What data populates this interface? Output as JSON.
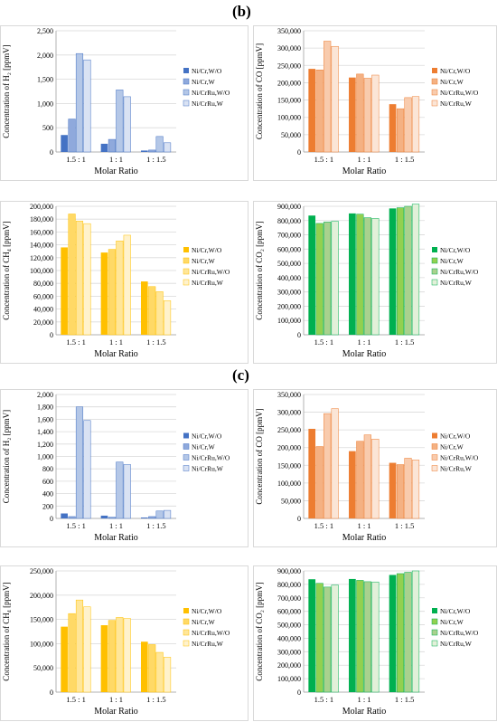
{
  "labels": {
    "b": "(b)",
    "c": "(c)"
  },
  "chart_data": [
    {
      "type": "bar",
      "ylabel": "Concentration of H₂ [ppmV]",
      "xlabel": "Molar Ratio",
      "categories": [
        "1.5 : 1",
        "1 : 1",
        "1 : 1.5"
      ],
      "ylim": [
        0,
        2500
      ],
      "step": 500,
      "series": [
        {
          "name": "Ni/Cr,W/O",
          "values": [
            350,
            170,
            30
          ]
        },
        {
          "name": "Ni/Cr,W",
          "values": [
            680,
            260,
            40
          ]
        },
        {
          "name": "Ni/CrRu,W/O",
          "values": [
            2030,
            1280,
            320
          ]
        },
        {
          "name": "Ni/CrRu,W",
          "values": [
            1900,
            1140,
            190
          ]
        }
      ],
      "palette": [
        "#4472c4",
        "#8fa9dc",
        "#b4c7e7",
        "#d9e2f3"
      ]
    },
    {
      "type": "bar",
      "ylabel": "Concentration of CO [ppmV]",
      "xlabel": "Molar Ratio",
      "categories": [
        "1.5 : 1",
        "1 : 1",
        "1 : 1.5"
      ],
      "ylim": [
        0,
        350000
      ],
      "step": 50000,
      "series": [
        {
          "name": "Ni/Cr,W/O",
          "values": [
            240000,
            215000,
            138000
          ]
        },
        {
          "name": "Ni/Cr,W",
          "values": [
            237000,
            225000,
            125000
          ]
        },
        {
          "name": "Ni/CrRu,W/O",
          "values": [
            320000,
            213000,
            157000
          ]
        },
        {
          "name": "Ni/CrRu,W",
          "values": [
            305000,
            222000,
            160000
          ]
        }
      ],
      "palette": [
        "#ed7d31",
        "#f4b183",
        "#f8cbad",
        "#fbe5d6"
      ]
    },
    {
      "type": "bar",
      "ylabel": "Concentration of CH₄ [ppmV]",
      "xlabel": "Molar Ratio",
      "categories": [
        "1.5 : 1",
        "1 : 1",
        "1 : 1.5"
      ],
      "ylim": [
        0,
        200000
      ],
      "step": 20000,
      "series": [
        {
          "name": "Ni/Cr,W/O",
          "values": [
            136000,
            128000,
            83000
          ]
        },
        {
          "name": "Ni/Cr,W",
          "values": [
            188000,
            133000,
            75000
          ]
        },
        {
          "name": "Ni/CrRu,W/O",
          "values": [
            177000,
            146000,
            67000
          ]
        },
        {
          "name": "Ni/CrRu,W",
          "values": [
            173000,
            155000,
            53000
          ]
        }
      ],
      "palette": [
        "#ffc000",
        "#ffd966",
        "#ffe699",
        "#fff2cc"
      ]
    },
    {
      "type": "bar",
      "ylabel": "Concentration of  CO₂ [ppmV]",
      "xlabel": "Molar Ratio",
      "categories": [
        "1.5 : 1",
        "1 : 1",
        "1 : 1.5"
      ],
      "ylim": [
        0,
        900000
      ],
      "step": 100000,
      "series": [
        {
          "name": "Ni/Cr,W/O",
          "values": [
            835000,
            850000,
            885000
          ]
        },
        {
          "name": "Ni/Cr,W",
          "values": [
            780000,
            845000,
            890000
          ]
        },
        {
          "name": "Ni/CrRu,W/O",
          "values": [
            790000,
            820000,
            900000
          ]
        },
        {
          "name": "Ni/CrRu,W",
          "values": [
            795000,
            815000,
            915000
          ]
        }
      ],
      "palette": [
        "#00b050",
        "#92d050",
        "#a9d18e",
        "#e2f0d9"
      ]
    },
    {
      "type": "bar",
      "ylabel": "Concentration of H₂ [ppmV]",
      "xlabel": "Molar Ratio",
      "categories": [
        "1.5 : 1",
        "1 : 1",
        "1 : 1.5"
      ],
      "ylim": [
        0,
        2000
      ],
      "step": 200,
      "series": [
        {
          "name": "Ni/Cr,W/O",
          "values": [
            80,
            45,
            15
          ]
        },
        {
          "name": "Ni/Cr,W",
          "values": [
            30,
            20,
            30
          ]
        },
        {
          "name": "Ni/CrRu,W/O",
          "values": [
            1800,
            910,
            120
          ]
        },
        {
          "name": "Ni/CrRu,W",
          "values": [
            1580,
            870,
            130
          ]
        }
      ],
      "palette": [
        "#4472c4",
        "#8fa9dc",
        "#b4c7e7",
        "#d9e2f3"
      ]
    },
    {
      "type": "bar",
      "ylabel": "Concentration of CO [ppmV]",
      "xlabel": "Molar Ratio",
      "categories": [
        "1.5 : 1",
        "1 : 1",
        "1 : 1.5"
      ],
      "ylim": [
        0,
        350000
      ],
      "step": 50000,
      "series": [
        {
          "name": "Ni/Cr,W/O",
          "values": [
            253000,
            190000,
            157000
          ]
        },
        {
          "name": "Ni/Cr,W",
          "values": [
            203000,
            218000,
            152000
          ]
        },
        {
          "name": "Ni/CrRu,W/O",
          "values": [
            296000,
            236000,
            170000
          ]
        },
        {
          "name": "Ni/CrRu,W",
          "values": [
            310000,
            224000,
            165000
          ]
        }
      ],
      "palette": [
        "#ed7d31",
        "#f4b183",
        "#f8cbad",
        "#fbe5d6"
      ]
    },
    {
      "type": "bar",
      "ylabel": "Concentration of CH₄ [ppmV]",
      "xlabel": "Molar Ratio",
      "categories": [
        "1.5 : 1",
        "1 : 1",
        "1 : 1.5"
      ],
      "ylim": [
        0,
        250000
      ],
      "step": 50000,
      "series": [
        {
          "name": "Ni/Cr,W/O",
          "values": [
            135000,
            138000,
            104000
          ]
        },
        {
          "name": "Ni/Cr,W",
          "values": [
            162000,
            148000,
            98000
          ]
        },
        {
          "name": "Ni/CrRu,W/O",
          "values": [
            190000,
            154000,
            82000
          ]
        },
        {
          "name": "Ni/CrRu,W",
          "values": [
            176000,
            152000,
            72000
          ]
        }
      ],
      "palette": [
        "#ffc000",
        "#ffd966",
        "#ffe699",
        "#fff2cc"
      ]
    },
    {
      "type": "bar",
      "ylabel": "Concentration of  CO₂ [ppmV]",
      "xlabel": "Molar Ratio",
      "categories": [
        "1.5 : 1",
        "1 : 1",
        "1 : 1.5"
      ],
      "ylim": [
        0,
        900000
      ],
      "step": 100000,
      "series": [
        {
          "name": "Ni/Cr,W/O",
          "values": [
            838000,
            840000,
            870000
          ]
        },
        {
          "name": "Ni/Cr,W",
          "values": [
            808000,
            830000,
            880000
          ]
        },
        {
          "name": "Ni/CrRu,W/O",
          "values": [
            780000,
            820000,
            890000
          ]
        },
        {
          "name": "Ni/CrRu,W",
          "values": [
            795000,
            818000,
            900000
          ]
        }
      ],
      "palette": [
        "#00b050",
        "#92d050",
        "#a9d18e",
        "#e2f0d9"
      ]
    }
  ]
}
